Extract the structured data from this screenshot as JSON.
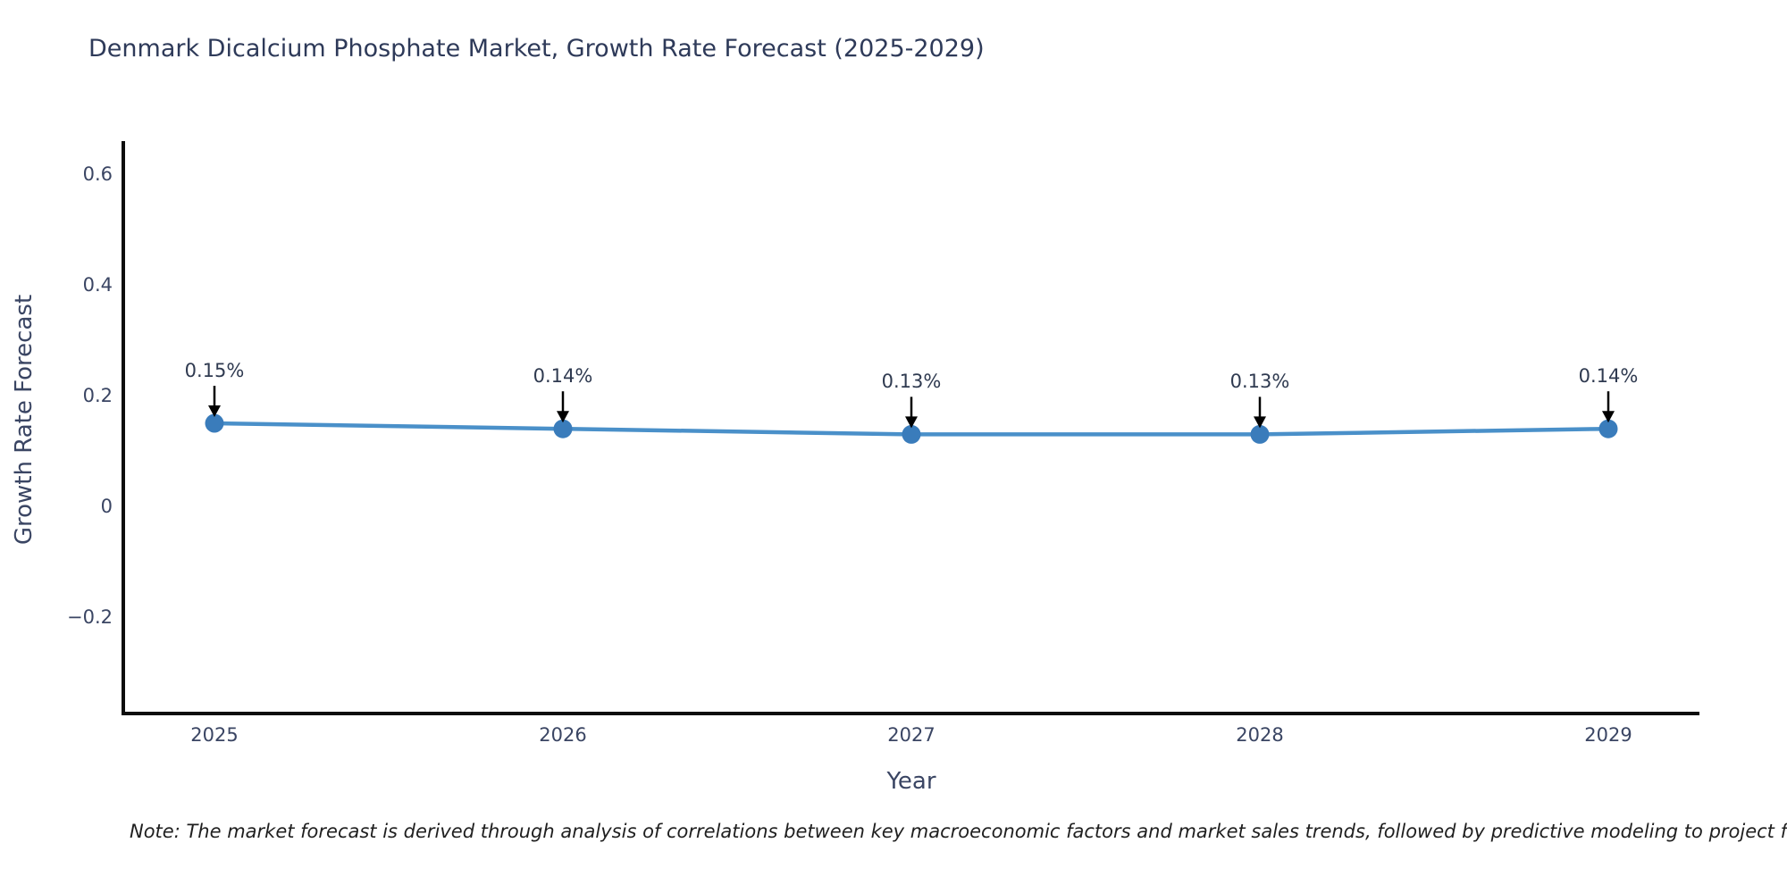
{
  "note": "Note: The market forecast is derived through analysis of correlations between key macroeconomic factors and market sales trends, followed by predictive modeling to project future sales",
  "chart_data": {
    "type": "line",
    "title": "Denmark Dicalcium Phosphate Market, Growth Rate Forecast (2025-2029)",
    "xlabel": "Year",
    "ylabel": "Growth Rate Forecast",
    "x": [
      "2025",
      "2026",
      "2027",
      "2028",
      "2029"
    ],
    "series": [
      {
        "name": "Growth Rate Forecast",
        "values": [
          0.15,
          0.14,
          0.13,
          0.13,
          0.14
        ]
      }
    ],
    "point_labels": [
      "0.15%",
      "0.14%",
      "0.13%",
      "0.13%",
      "0.14%"
    ],
    "yticks": [
      0.6,
      0.4,
      0.2,
      0,
      -0.2
    ],
    "ytick_labels": [
      "0.6",
      "0.4",
      "0.2",
      "0",
      "−0.2"
    ],
    "ylim": [
      -0.38,
      0.66
    ],
    "grid": false,
    "legend": "none",
    "annotation_style": "value labels with downward arrows to each point",
    "colors": {
      "line": "#4a90c9",
      "marker": "#3a7cbb",
      "axis": "#0d0d0d",
      "tick_text": "#3a4563",
      "title_text": "#2e3a59",
      "annotation_text": "#2f3a50",
      "arrow": "#000000",
      "background": "#ffffff"
    }
  }
}
